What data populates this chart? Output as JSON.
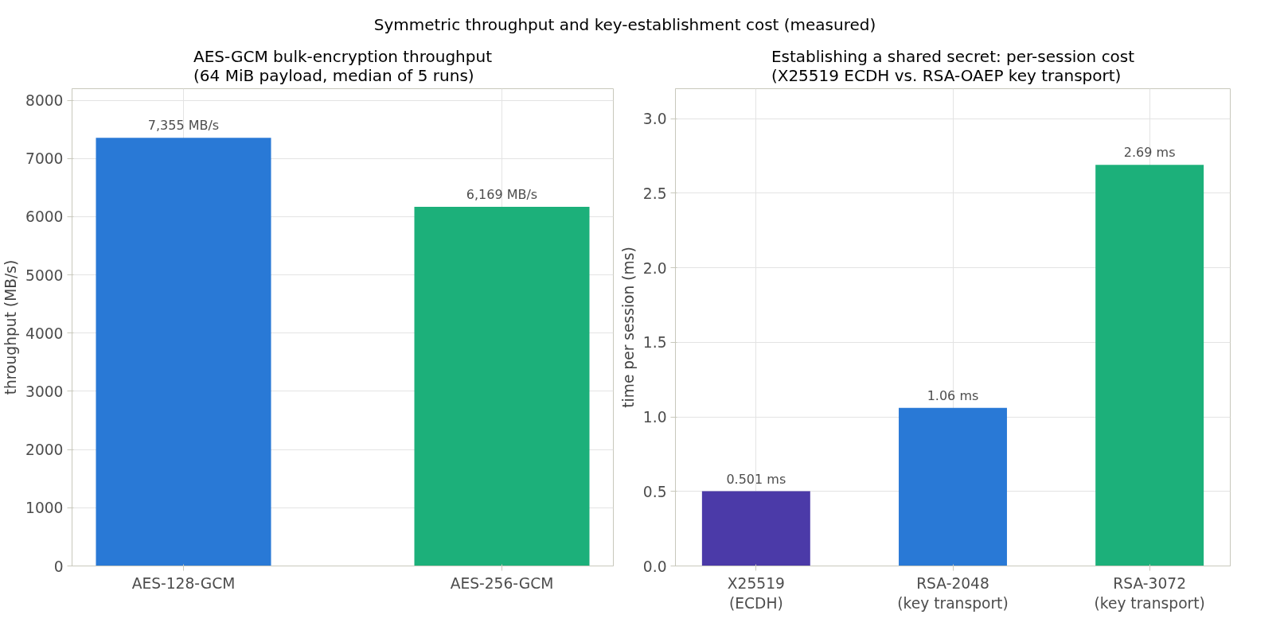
{
  "chart_data": [
    {
      "type": "bar",
      "title": "AES-GCM bulk-encryption throughput\n(64 MiB payload, median of 5 runs)",
      "annotations": [
        "Symmetric throughput and key-establishment cost (measured)"
      ],
      "ylabel": "throughput (MB/s)",
      "categories": [
        "AES-128-GCM",
        "AES-256-GCM"
      ],
      "values": [
        7355,
        6169
      ],
      "colors": [
        "#2979d6",
        "#1cb07a"
      ],
      "value_labels": [
        "7,355 MB/s",
        "6,169 MB/s"
      ],
      "ylim": [
        0,
        8200
      ],
      "yticks": [
        0,
        1000,
        2000,
        3000,
        4000,
        5000,
        6000,
        7000,
        8000
      ],
      "grid": true
    },
    {
      "type": "bar",
      "title": "Establishing a shared secret: per-session cost\n(X25519 ECDH vs. RSA-OAEP key transport)",
      "ylabel": "time per session (ms)",
      "categories": [
        "X25519\n(ECDH)",
        "RSA-2048\n(key transport)",
        "RSA-3072\n(key transport)"
      ],
      "values": [
        0.501,
        1.06,
        2.69
      ],
      "colors": [
        "#4b3aa8",
        "#2979d6",
        "#1cb07a"
      ],
      "value_labels": [
        "0.501 ms",
        "1.06 ms",
        "2.69 ms"
      ],
      "ylim": [
        0,
        3.2
      ],
      "yticks": [
        {
          "value": 0,
          "label": "0.0"
        },
        0.5,
        {
          "value": 1,
          "label": "1.0"
        },
        1.5,
        {
          "value": 2,
          "label": "2.0"
        },
        2.5,
        {
          "value": 3,
          "label": "3.0"
        }
      ],
      "grid": true
    }
  ]
}
